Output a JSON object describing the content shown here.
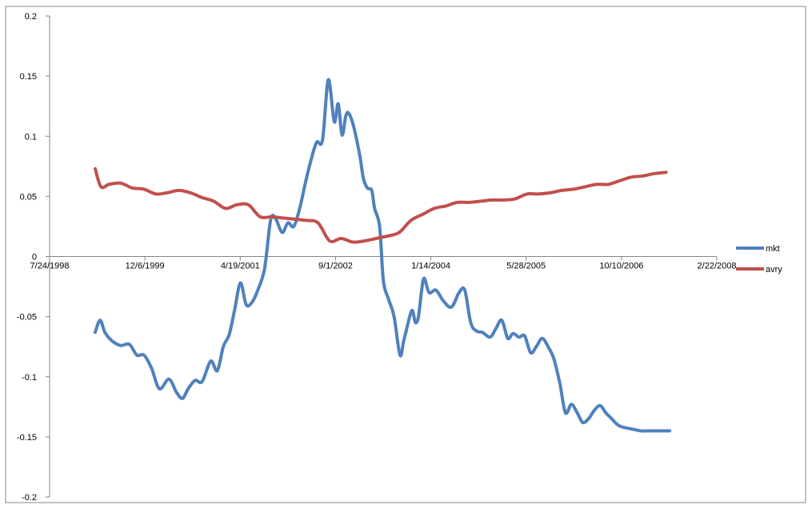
{
  "chart_data": {
    "type": "line",
    "title": "",
    "xlabel": "",
    "ylabel": "",
    "x_ticks": [
      "7/24/1998",
      "12/6/1999",
      "4/19/2001",
      "9/1/2002",
      "1/14/2004",
      "5/28/2005",
      "10/10/2006",
      "2/22/2008"
    ],
    "y_ticks": [
      "0.2",
      "0.15",
      "0.1",
      "0.05",
      "0",
      "-0.05",
      "-0.1",
      "-0.15",
      "-0.2"
    ],
    "xlim": [
      "1998-07-24",
      "2008-02-22"
    ],
    "ylim": [
      -0.2,
      0.2
    ],
    "grid": false,
    "legend_position": "right",
    "series": [
      {
        "name": "mkt",
        "color": "#4F81BD",
        "x": [
          "1999-03-20",
          "1999-04-15",
          "1999-05-10",
          "1999-06-15",
          "1999-08-01",
          "1999-09-15",
          "1999-10-25",
          "1999-12-01",
          "2000-01-10",
          "2000-02-20",
          "2000-04-10",
          "2000-05-20",
          "2000-06-20",
          "2000-07-20",
          "2000-08-25",
          "2000-10-01",
          "2000-11-15",
          "2000-12-20",
          "2001-01-20",
          "2001-02-20",
          "2001-03-20",
          "2001-04-20",
          "2001-05-20",
          "2001-06-20",
          "2001-07-20",
          "2001-08-25",
          "2001-09-25",
          "2001-10-20",
          "2001-11-25",
          "2001-12-25",
          "2002-01-25",
          "2002-02-25",
          "2002-03-25",
          "2002-04-25",
          "2002-05-25",
          "2002-06-25",
          "2002-07-25",
          "2002-08-25",
          "2002-09-15",
          "2002-10-05",
          "2002-10-25",
          "2002-11-10",
          "2002-12-05",
          "2003-01-05",
          "2003-01-25",
          "2003-02-15",
          "2003-03-10",
          "2003-03-25",
          "2003-04-20",
          "2003-05-10",
          "2003-06-05",
          "2003-07-05",
          "2003-08-05",
          "2003-08-25",
          "2003-09-25",
          "2003-10-10",
          "2003-10-25",
          "2003-11-10",
          "2003-11-25",
          "2003-12-10",
          "2004-01-05",
          "2004-02-10",
          "2004-03-20",
          "2004-05-01",
          "2004-06-10",
          "2004-07-10",
          "2004-08-10",
          "2004-09-10",
          "2004-10-10",
          "2004-11-20",
          "2004-12-20",
          "2005-01-20",
          "2005-02-20",
          "2005-03-20",
          "2005-04-20",
          "2005-05-20",
          "2005-06-20",
          "2005-07-20",
          "2005-08-20",
          "2005-09-20",
          "2005-10-20",
          "2005-11-20",
          "2005-12-20",
          "2006-01-20",
          "2006-02-20",
          "2006-03-20",
          "2006-04-20",
          "2006-05-20",
          "2006-06-20",
          "2006-07-20",
          "2006-08-20",
          "2006-09-20",
          "2006-10-20",
          "2006-11-20",
          "2006-12-20",
          "2007-01-20",
          "2007-02-20",
          "2007-03-20",
          "2007-04-20",
          "2007-05-20",
          "2007-06-20"
        ],
        "y": [
          -0.063,
          -0.053,
          -0.063,
          -0.07,
          -0.074,
          -0.073,
          -0.082,
          -0.082,
          -0.093,
          -0.11,
          -0.102,
          -0.113,
          -0.118,
          -0.11,
          -0.103,
          -0.104,
          -0.087,
          -0.095,
          -0.075,
          -0.065,
          -0.045,
          -0.022,
          -0.04,
          -0.038,
          -0.028,
          -0.01,
          0.03,
          0.032,
          0.02,
          0.028,
          0.025,
          0.04,
          0.06,
          0.08,
          0.095,
          0.097,
          0.147,
          0.112,
          0.127,
          0.101,
          0.117,
          0.119,
          0.108,
          0.085,
          0.065,
          0.057,
          0.055,
          0.04,
          0.025,
          -0.02,
          -0.035,
          -0.05,
          -0.082,
          -0.07,
          -0.05,
          -0.045,
          -0.055,
          -0.05,
          -0.03,
          -0.018,
          -0.03,
          -0.028,
          -0.037,
          -0.042,
          -0.03,
          -0.028,
          -0.055,
          -0.062,
          -0.063,
          -0.067,
          -0.06,
          -0.053,
          -0.068,
          -0.064,
          -0.067,
          -0.066,
          -0.08,
          -0.075,
          -0.068,
          -0.075,
          -0.085,
          -0.105,
          -0.13,
          -0.123,
          -0.13,
          -0.138,
          -0.135,
          -0.128,
          -0.124,
          -0.13,
          -0.135,
          -0.14,
          -0.142,
          -0.143,
          -0.144,
          -0.145,
          -0.145,
          -0.145,
          -0.145,
          -0.145,
          -0.145
        ]
      },
      {
        "name": "avry",
        "color": "#C0504D",
        "x": [
          "1999-03-20",
          "1999-04-20",
          "1999-06-01",
          "1999-08-01",
          "1999-10-01",
          "1999-12-01",
          "2000-02-01",
          "2000-04-01",
          "2000-06-01",
          "2000-08-01",
          "2000-10-01",
          "2000-12-01",
          "2001-02-01",
          "2001-04-01",
          "2001-06-01",
          "2001-08-01",
          "2001-10-01",
          "2001-12-01",
          "2002-02-01",
          "2002-04-01",
          "2002-06-01",
          "2002-08-01",
          "2002-10-01",
          "2002-12-01",
          "2003-02-01",
          "2003-04-01",
          "2003-06-01",
          "2003-08-01",
          "2003-10-01",
          "2003-12-01",
          "2004-02-01",
          "2004-04-01",
          "2004-06-01",
          "2004-08-01",
          "2004-10-01",
          "2004-12-01",
          "2005-02-01",
          "2005-04-01",
          "2005-06-01",
          "2005-08-01",
          "2005-10-01",
          "2005-12-01",
          "2006-02-01",
          "2006-04-01",
          "2006-06-01",
          "2006-08-01",
          "2006-10-01",
          "2006-12-01",
          "2007-02-01",
          "2007-04-01",
          "2007-06-01"
        ],
        "y": [
          0.073,
          0.058,
          0.06,
          0.061,
          0.057,
          0.056,
          0.052,
          0.053,
          0.055,
          0.053,
          0.049,
          0.046,
          0.04,
          0.043,
          0.043,
          0.033,
          0.033,
          0.032,
          0.031,
          0.03,
          0.028,
          0.013,
          0.015,
          0.012,
          0.013,
          0.015,
          0.017,
          0.02,
          0.03,
          0.035,
          0.04,
          0.042,
          0.045,
          0.045,
          0.046,
          0.047,
          0.047,
          0.048,
          0.052,
          0.052,
          0.053,
          0.055,
          0.056,
          0.058,
          0.06,
          0.06,
          0.063,
          0.066,
          0.067,
          0.069,
          0.07
        ]
      }
    ]
  }
}
